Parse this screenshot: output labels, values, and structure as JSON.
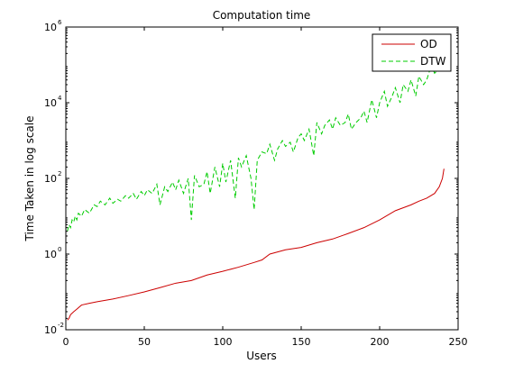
{
  "chart_data": {
    "type": "line",
    "title": "Computation time",
    "xlabel": "Users",
    "ylabel": "Time Taken in log scale",
    "xlim": [
      0,
      250
    ],
    "ylim": [
      0.01,
      1000000
    ],
    "yscale": "log",
    "grid": false,
    "legend_position": "top-right",
    "x_ticks": [
      {
        "value": 0,
        "label": "0"
      },
      {
        "value": 50,
        "label": "50"
      },
      {
        "value": 100,
        "label": "100"
      },
      {
        "value": 150,
        "label": "150"
      },
      {
        "value": 200,
        "label": "200"
      },
      {
        "value": 250,
        "label": "250"
      }
    ],
    "y_ticks": [
      {
        "value": 0.01,
        "base": "10",
        "exp": "-2"
      },
      {
        "value": 1,
        "base": "10",
        "exp": "0"
      },
      {
        "value": 100,
        "base": "10",
        "exp": "2"
      },
      {
        "value": 10000,
        "base": "10",
        "exp": "4"
      },
      {
        "value": 1000000,
        "base": "10",
        "exp": "6"
      }
    ],
    "series": [
      {
        "name": "OD",
        "color": "#cc0000",
        "style": "solid",
        "x": [
          1,
          2,
          3,
          5,
          7,
          10,
          15,
          20,
          30,
          40,
          50,
          60,
          70,
          80,
          90,
          100,
          110,
          120,
          125,
          130,
          140,
          150,
          160,
          170,
          180,
          190,
          200,
          210,
          220,
          225,
          230,
          235,
          238,
          240,
          241
        ],
        "values": [
          0.018,
          0.02,
          0.025,
          0.03,
          0.035,
          0.045,
          0.05,
          0.055,
          0.065,
          0.08,
          0.1,
          0.13,
          0.17,
          0.2,
          0.28,
          0.35,
          0.45,
          0.6,
          0.7,
          1.0,
          1.3,
          1.5,
          2.0,
          2.5,
          3.5,
          5.0,
          8.0,
          14.0,
          20.0,
          25.0,
          30.0,
          40.0,
          60.0,
          100.0,
          180.0
        ]
      },
      {
        "name": "DTW",
        "color": "#00cc00",
        "style": "dashed",
        "x": [
          1,
          2,
          3,
          4,
          5,
          6,
          7,
          8,
          10,
          12,
          15,
          18,
          20,
          22,
          25,
          28,
          30,
          33,
          35,
          38,
          40,
          43,
          45,
          48,
          50,
          52,
          55,
          58,
          60,
          63,
          65,
          68,
          70,
          72,
          75,
          78,
          80,
          82,
          85,
          88,
          90,
          92,
          95,
          98,
          100,
          102,
          105,
          108,
          110,
          112,
          115,
          118,
          120,
          122,
          125,
          128,
          130,
          133,
          135,
          138,
          140,
          143,
          145,
          148,
          150,
          152,
          155,
          158,
          160,
          163,
          165,
          168,
          170,
          172,
          175,
          178,
          180,
          182,
          185,
          188,
          190,
          192,
          195,
          198,
          200,
          203,
          205,
          208,
          210,
          213,
          215,
          218,
          220,
          223,
          225,
          228,
          230,
          233,
          235,
          238,
          240
        ],
        "values": [
          4,
          6,
          5,
          8,
          7,
          10,
          8,
          12,
          10,
          15,
          12,
          20,
          18,
          25,
          20,
          30,
          22,
          28,
          25,
          35,
          30,
          40,
          28,
          45,
          35,
          50,
          40,
          70,
          20,
          60,
          45,
          80,
          50,
          90,
          40,
          100,
          8,
          120,
          60,
          70,
          150,
          40,
          200,
          60,
          250,
          80,
          300,
          30,
          350,
          200,
          400,
          100,
          15,
          300,
          500,
          450,
          800,
          300,
          600,
          1000,
          700,
          900,
          500,
          1200,
          1500,
          1000,
          2000,
          400,
          3000,
          1500,
          2500,
          3500,
          2000,
          4000,
          2500,
          3000,
          5000,
          2000,
          3000,
          4000,
          6000,
          3000,
          12000,
          4000,
          10000,
          20000,
          8000,
          15000,
          25000,
          10000,
          30000,
          20000,
          40000,
          15000,
          50000,
          30000,
          40000,
          100000,
          60000,
          80000,
          120000
        ]
      }
    ]
  }
}
